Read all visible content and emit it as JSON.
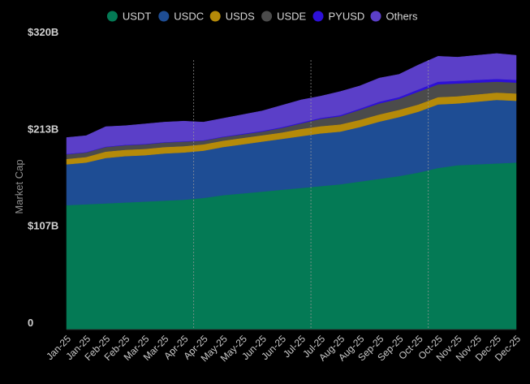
{
  "chart_data": {
    "type": "area",
    "stacked": true,
    "title": "",
    "xlabel": "",
    "ylabel": "Market Cap",
    "ylim": [
      0,
      320
    ],
    "yticks": [
      {
        "value": 0,
        "label": "0"
      },
      {
        "value": 106.67,
        "label": "$107B"
      },
      {
        "value": 213.33,
        "label": "$213B"
      },
      {
        "value": 320,
        "label": "$320B"
      }
    ],
    "x": [
      "Jan-25",
      "Jan-25",
      "Feb-25",
      "Feb-25",
      "Mar-25",
      "Mar-25",
      "Apr-25",
      "Apr-25",
      "May-25",
      "May-25",
      "Jun-25",
      "Jun-25",
      "Jul-25",
      "Jul-25",
      "Aug-25",
      "Aug-25",
      "Sep-25",
      "Sep-25",
      "Oct-25",
      "Oct-25",
      "Nov-25",
      "Nov-25",
      "Dec-25",
      "Dec-25"
    ],
    "reference_lines_at": [
      6.5,
      12.5,
      18.5
    ],
    "legend_position": "top-center",
    "series": [
      {
        "name": "USDT",
        "color": "#047a55",
        "values": [
          137,
          138,
          139,
          140,
          141,
          142,
          143,
          145,
          148,
          150,
          152,
          154,
          156,
          158,
          160,
          163,
          166,
          169,
          173,
          178,
          181,
          182,
          183,
          184
        ]
      },
      {
        "name": "USDC",
        "color": "#1e4d94",
        "values": [
          45,
          46,
          50,
          51,
          51,
          52,
          52,
          52,
          53,
          54,
          55,
          56,
          57,
          58,
          58,
          60,
          63,
          65,
          67,
          70,
          68,
          69,
          70,
          68
        ]
      },
      {
        "name": "USDS",
        "color": "#b58a09",
        "values": [
          6,
          6,
          7,
          7,
          7,
          7,
          7,
          7,
          7,
          7,
          7,
          7,
          8,
          8,
          8,
          8,
          8,
          8,
          8,
          8,
          8,
          8,
          8,
          8
        ]
      },
      {
        "name": "USDE",
        "color": "#4b4b4b",
        "values": [
          5,
          5,
          5,
          5,
          5,
          5,
          5,
          4,
          4,
          4,
          4,
          5,
          6,
          8,
          9,
          11,
          12,
          12,
          14,
          14,
          14,
          13,
          12,
          12
        ]
      },
      {
        "name": "PYUSD",
        "color": "#2d10d8",
        "values": [
          0.5,
          0.5,
          0.5,
          0.5,
          0.5,
          0.5,
          0.5,
          0.5,
          0.6,
          0.7,
          0.8,
          0.9,
          1,
          1.1,
          1.2,
          1.3,
          2,
          2,
          2.5,
          3,
          3,
          3,
          3,
          3
        ]
      },
      {
        "name": "Others",
        "color": "#5b3fc8",
        "values": [
          18,
          18,
          22,
          21,
          22,
          22,
          22,
          20,
          20,
          21,
          22,
          24,
          25,
          24,
          26,
          25,
          26,
          25,
          27,
          28,
          26,
          27,
          28,
          27
        ]
      }
    ]
  }
}
